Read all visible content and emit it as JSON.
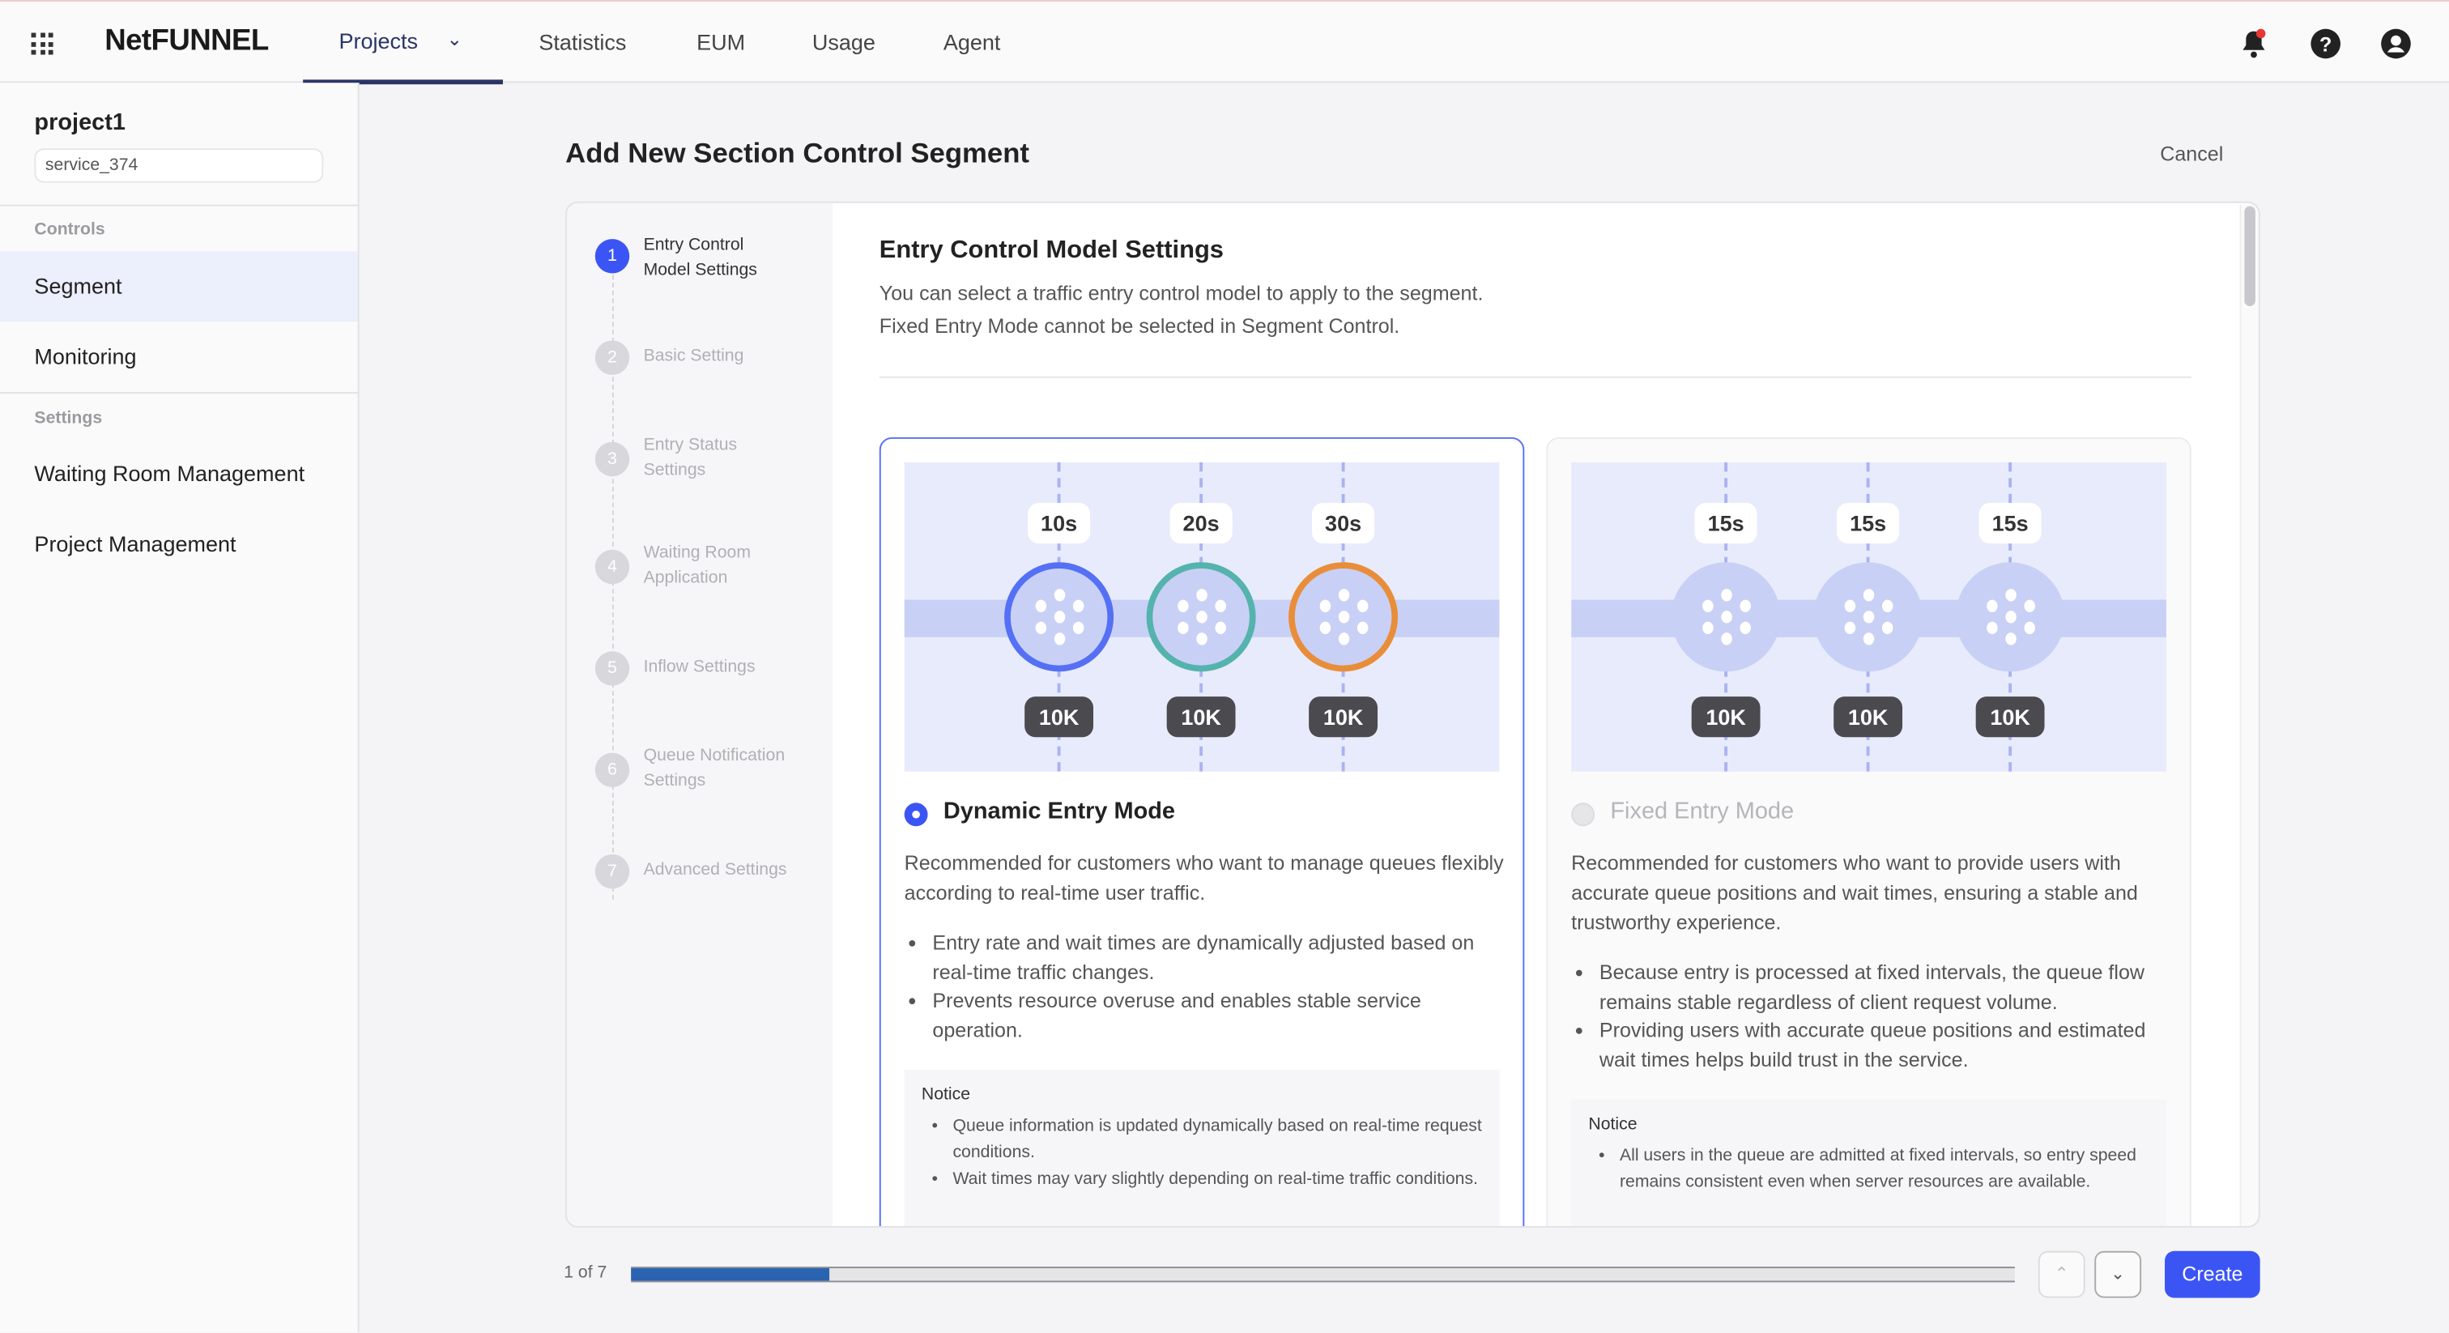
{
  "header": {
    "logo": "NetFUNNEL",
    "nav": [
      {
        "label": "Projects",
        "active": true
      },
      {
        "label": "Statistics"
      },
      {
        "label": "EUM"
      },
      {
        "label": "Usage"
      },
      {
        "label": "Agent"
      }
    ],
    "icons": [
      "grid-icon",
      "bell-icon",
      "help-icon",
      "user-icon"
    ]
  },
  "sidebar": {
    "project": "project1",
    "service": "service_374",
    "controls_label": "Controls",
    "controls": [
      "Segment",
      "Monitoring"
    ],
    "settings_label": "Settings",
    "settings": [
      "Waiting Room Management",
      "Project Management"
    ],
    "active": "Segment"
  },
  "page": {
    "title": "Add New Section Control Segment",
    "cancel": "Cancel"
  },
  "steps": [
    {
      "num": "1",
      "label": "Entry Control Model Settings",
      "active": true
    },
    {
      "num": "2",
      "label": "Basic Setting"
    },
    {
      "num": "3",
      "label": "Entry Status Settings"
    },
    {
      "num": "4",
      "label": "Waiting Room Application"
    },
    {
      "num": "5",
      "label": "Inflow Settings"
    },
    {
      "num": "6",
      "label": "Queue Notification Settings"
    },
    {
      "num": "7",
      "label": "Advanced Settings"
    }
  ],
  "section": {
    "title": "Entry Control Model Settings",
    "desc1": "You can select a traffic entry control model to apply to the segment.",
    "desc2": "Fixed Entry Mode cannot be selected in Segment Control."
  },
  "options": [
    {
      "title": "Dynamic Entry Mode",
      "selected": true,
      "times": [
        "10s",
        "20s",
        "30s"
      ],
      "counts": [
        "10K",
        "10K",
        "10K"
      ],
      "ring_colors": [
        "#5570f5",
        "#55b3ad",
        "#e88e3a"
      ],
      "desc": "Recommended for customers who want to manage queues flexibly according to real-time user traffic.",
      "bullets": [
        "Entry rate and wait times are dynamically adjusted based on real-time traffic changes.",
        "Prevents resource overuse and enables stable service operation."
      ],
      "notice_title": "Notice",
      "notice": [
        "Queue information is updated dynamically based on real-time request conditions.",
        "Wait times may vary slightly depending on real-time traffic conditions."
      ]
    },
    {
      "title": "Fixed Entry Mode",
      "selected": false,
      "disabled": true,
      "times": [
        "15s",
        "15s",
        "15s"
      ],
      "counts": [
        "10K",
        "10K",
        "10K"
      ],
      "desc": "Recommended for customers who want to provide users with accurate queue positions and wait times, ensuring a stable and trustworthy experience.",
      "bullets": [
        "Because entry is processed at fixed intervals, the queue flow remains stable regardless of client request volume.",
        "Providing users with accurate queue positions and estimated wait times helps build trust in the service."
      ],
      "notice_title": "Notice",
      "notice": [
        "All users in the queue are admitted at fixed intervals, so entry speed remains consistent even when server resources are available."
      ]
    }
  ],
  "footer": {
    "page_label": "1 of 7",
    "progress": 0.143,
    "create": "Create"
  },
  "colors": {
    "accent": "#3b55f5",
    "nav_active": "#2b3467",
    "progress": "#2a63b0"
  }
}
